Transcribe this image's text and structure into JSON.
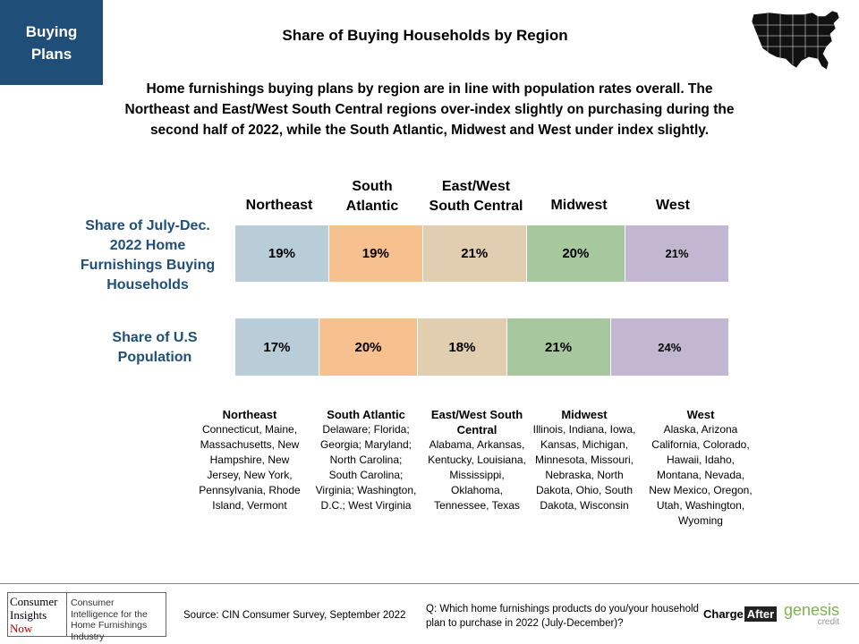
{
  "tag": "Buying Plans",
  "title": "Share of Buying Households by Region",
  "intro": "Home furnishings buying plans by region are in line with population rates overall. The Northeast and East/West South Central regions over-index slightly on purchasing during the second half of 2022, while the South Atlantic, Midwest and West under index slightly.",
  "chart_data": {
    "type": "bar",
    "categories": [
      "Northeast",
      "South Atlantic",
      "East/West South Central",
      "Midwest",
      "West"
    ],
    "series": [
      {
        "name": "Share of July-Dec. 2022 Home Furnishings Buying Households",
        "values": [
          19,
          19,
          21,
          20,
          21
        ],
        "labels": [
          "19%",
          "19%",
          "21%",
          "20%",
          "21%"
        ]
      },
      {
        "name": "Share of U.S Population",
        "values": [
          17,
          20,
          18,
          21,
          24
        ],
        "labels": [
          "17%",
          "20%",
          "18%",
          "21%",
          "24%"
        ]
      }
    ],
    "colors": [
      "#b8cdd8",
      "#f6c08f",
      "#e1cdb0",
      "#a7c89f",
      "#c2b6d0"
    ]
  },
  "col_headers": [
    "Northeast",
    "South Atlantic",
    "East/West South Central",
    "Midwest",
    "West"
  ],
  "regions": [
    {
      "name": "Northeast",
      "states": "Connecticut, Maine, Massachusetts, New Hampshire, New Jersey, New York, Pennsylvania, Rhode Island, Vermont"
    },
    {
      "name": "South Atlantic",
      "states": "Delaware; Florida; Georgia; Maryland; North Carolina; South Carolina; Virginia; Washington, D.C.; West Virginia"
    },
    {
      "name": "East/West South Central",
      "states": "Alabama, Arkansas, Kentucky, Louisiana, Mississippi, Oklahoma, Tennessee, Texas"
    },
    {
      "name": "Midwest",
      "states": "Illinois, Indiana, Iowa, Kansas, Michigan, Minnesota, Missouri, Nebraska, North Dakota, Ohio, South Dakota, Wisconsin"
    },
    {
      "name": "West",
      "states": "Alaska, Arizona California, Colorado, Hawaii, Idaho, Montana, Nevada, New Mexico, Oregon, Utah, Washington, Wyoming"
    }
  ],
  "footer": {
    "logo_left": [
      "Consumer",
      "Insights",
      "Now"
    ],
    "logo_right": "Consumer Intelligence for the Home Furnishings Industry",
    "source": "Source: CIN Consumer Survey, September 2022",
    "question": "Q: Which home furnishings products do you/your household plan to purchase in 2022 (July-December)?",
    "chargeafter_1": "Charge",
    "chargeafter_2": "After",
    "genesis": "genesis",
    "genesis_sub": "credit"
  }
}
